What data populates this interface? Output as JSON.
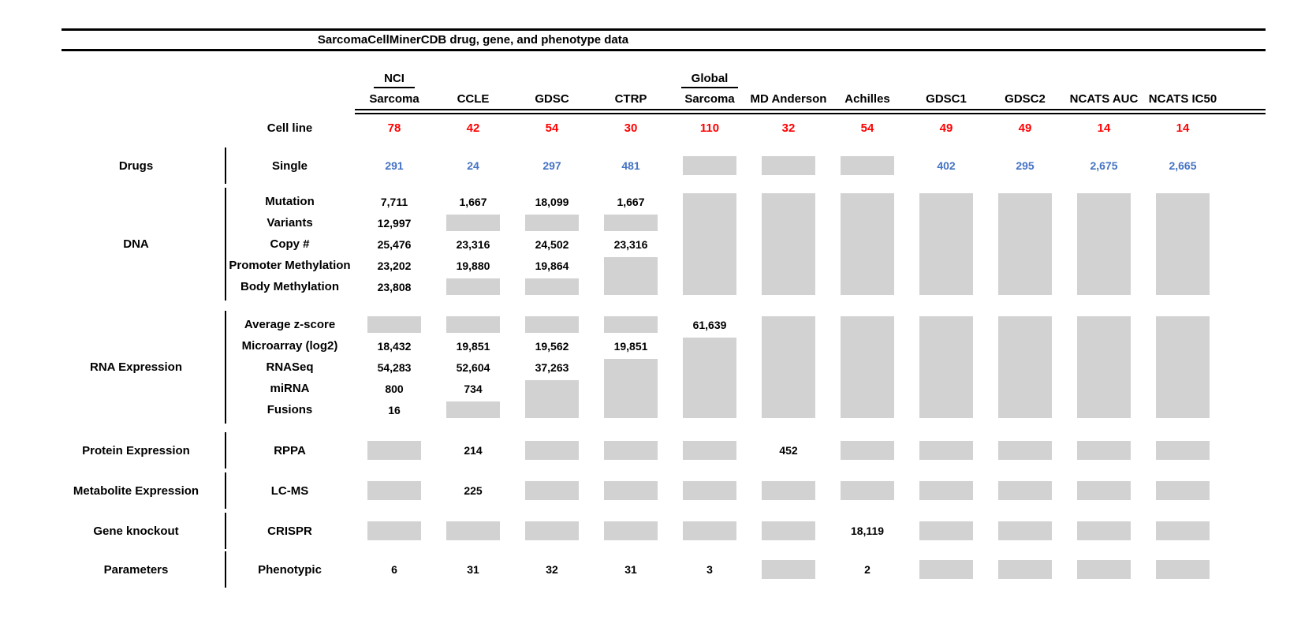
{
  "chart_data": {
    "type": "table",
    "title": "SarcomaCellMinerCDB drug, gene, and phenotype data",
    "columns": [
      {
        "group": "NCI",
        "label": "Sarcoma"
      },
      {
        "group": "",
        "label": "CCLE"
      },
      {
        "group": "",
        "label": "GDSC"
      },
      {
        "group": "",
        "label": "CTRP"
      },
      {
        "group": "Global",
        "label": "Sarcoma"
      },
      {
        "group": "",
        "label": "MD Anderson"
      },
      {
        "group": "",
        "label": "Achilles"
      },
      {
        "group": "",
        "label": "GDSC1"
      },
      {
        "group": "",
        "label": "GDSC2"
      },
      {
        "group": "",
        "label": "NCATS AUC"
      },
      {
        "group": "",
        "label": "NCATS IC50"
      }
    ],
    "cell_line": {
      "label": "Cell line",
      "values": [
        "78",
        "42",
        "54",
        "30",
        "110",
        "32",
        "54",
        "49",
        "49",
        "14",
        "14"
      ]
    },
    "sections": [
      {
        "category": "Drugs",
        "rows": [
          {
            "label": "Single",
            "value_color": "blue",
            "values": [
              "291",
              "24",
              "297",
              "481",
              null,
              null,
              null,
              "402",
              "295",
              "2,675",
              "2,665"
            ]
          }
        ]
      },
      {
        "category": "DNA",
        "rows": [
          {
            "label": "Mutation",
            "values": [
              "7,711",
              "1,667",
              "18,099",
              "1,667",
              null,
              null,
              null,
              null,
              null,
              null,
              null
            ]
          },
          {
            "label": "Variants",
            "values": [
              "12,997",
              null,
              null,
              null,
              null,
              null,
              null,
              null,
              null,
              null,
              null
            ]
          },
          {
            "label": "Copy #",
            "values": [
              "25,476",
              "23,316",
              "24,502",
              "23,316",
              null,
              null,
              null,
              null,
              null,
              null,
              null
            ]
          },
          {
            "label": "Promoter Methylation",
            "values": [
              "23,202",
              "19,880",
              "19,864",
              null,
              null,
              null,
              null,
              null,
              null,
              null,
              null
            ]
          },
          {
            "label": "Body Methylation",
            "values": [
              "23,808",
              null,
              null,
              null,
              null,
              null,
              null,
              null,
              null,
              null,
              null
            ]
          }
        ]
      },
      {
        "category": "RNA Expression",
        "rows": [
          {
            "label": "Average z-score",
            "values": [
              null,
              null,
              null,
              null,
              "61,639",
              null,
              null,
              null,
              null,
              null,
              null
            ]
          },
          {
            "label": "Microarray (log2)",
            "values": [
              "18,432",
              "19,851",
              "19,562",
              "19,851",
              null,
              null,
              null,
              null,
              null,
              null,
              null
            ]
          },
          {
            "label": "RNASeq",
            "values": [
              "54,283",
              "52,604",
              "37,263",
              null,
              null,
              null,
              null,
              null,
              null,
              null,
              null
            ]
          },
          {
            "label": "miRNA",
            "values": [
              "800",
              "734",
              null,
              null,
              null,
              null,
              null,
              null,
              null,
              null,
              null
            ]
          },
          {
            "label": "Fusions",
            "values": [
              "16",
              null,
              null,
              null,
              null,
              null,
              null,
              null,
              null,
              null,
              null
            ]
          }
        ]
      },
      {
        "category": "Protein Expression",
        "rows": [
          {
            "label": "RPPA",
            "values": [
              null,
              "214",
              null,
              null,
              null,
              "452",
              null,
              null,
              null,
              null,
              null
            ]
          }
        ]
      },
      {
        "category": "Metabolite Expression",
        "rows": [
          {
            "label": "LC-MS",
            "values": [
              null,
              "225",
              null,
              null,
              null,
              null,
              null,
              null,
              null,
              null,
              null
            ]
          }
        ]
      },
      {
        "category": "Gene knockout",
        "rows": [
          {
            "label": "CRISPR",
            "values": [
              null,
              null,
              null,
              null,
              null,
              null,
              "18,119",
              null,
              null,
              null,
              null
            ]
          }
        ]
      },
      {
        "category": "Parameters",
        "rows": [
          {
            "label": "Phenotypic",
            "values": [
              "6",
              "31",
              "32",
              "31",
              "3",
              null,
              "2",
              null,
              null,
              null,
              null
            ]
          }
        ]
      }
    ],
    "colors": {
      "red": "#FF0000",
      "blue": "#4472C4",
      "gray_box": "#D2D2D2",
      "line": "#000000",
      "text": "#000000"
    }
  }
}
